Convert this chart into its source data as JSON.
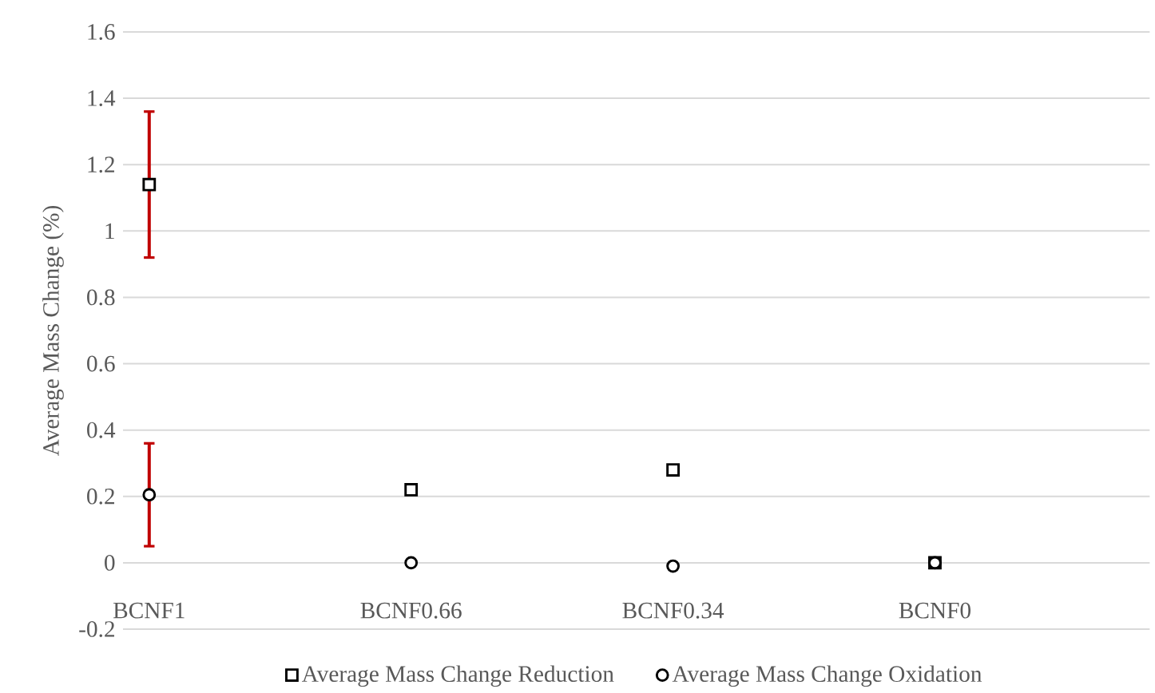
{
  "chart_data": {
    "type": "scatter",
    "ylabel": "Average Mass Change (%)",
    "categories": [
      "BCNF1",
      "BCNF0.66",
      "BCNF0.34",
      "BCNF0"
    ],
    "series": [
      {
        "name": "Average Mass Change Reduction",
        "color": "#000000",
        "marker": "square",
        "values": [
          1.14,
          0.22,
          0.28,
          0
        ],
        "errors": [
          [
            0.92,
            1.36
          ],
          null,
          null,
          null
        ]
      },
      {
        "name": "Average Mass Change Oxidation",
        "color": "#000000",
        "marker": "circle",
        "values": [
          0.205,
          0,
          -0.01,
          0
        ],
        "errors": [
          [
            0.05,
            0.36
          ],
          null,
          null,
          null
        ]
      }
    ],
    "ylim": [
      -0.2,
      1.6
    ],
    "yticks": [
      -0.2,
      0,
      0.2,
      0.4,
      0.6,
      0.8,
      1,
      1.2,
      1.4,
      1.6
    ],
    "grid": "y",
    "legend": "bottom"
  }
}
